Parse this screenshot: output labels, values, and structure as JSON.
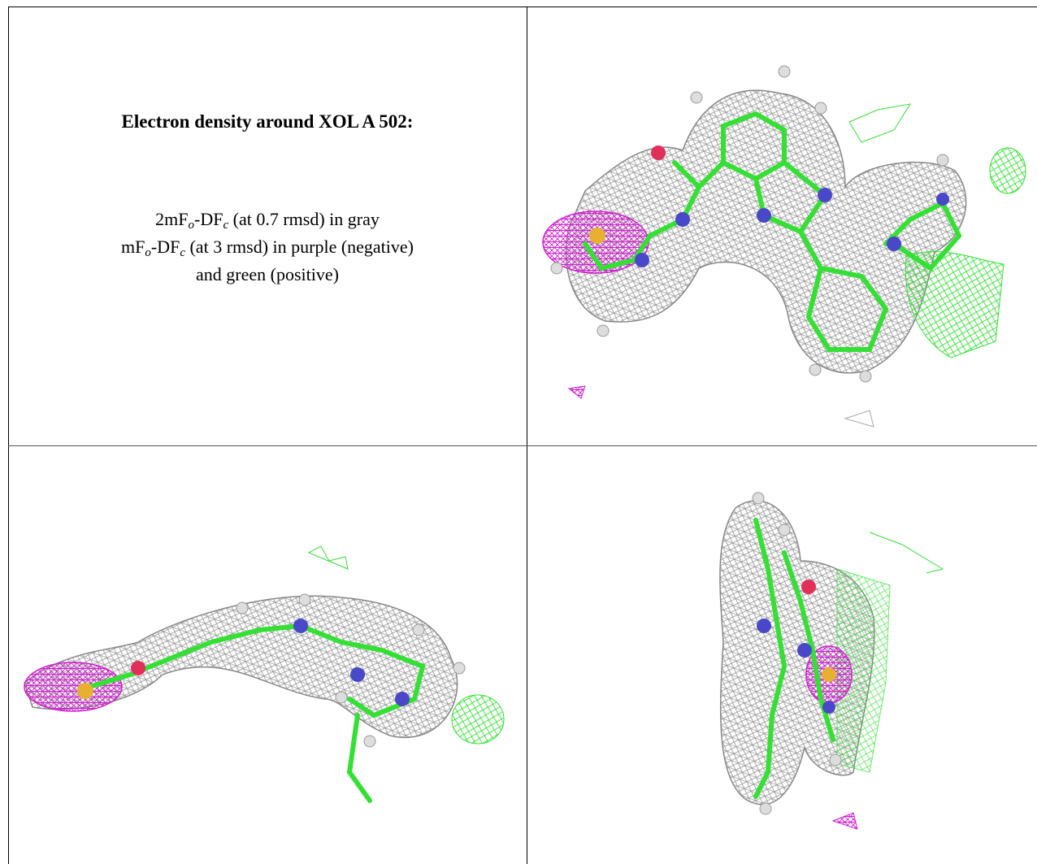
{
  "panel": {
    "title": "Electron density around XOL A 502:",
    "lines": [
      [
        "2mF",
        "o",
        "-DF",
        "c",
        " (at 0.7 rmsd) in gray"
      ],
      [
        "mF",
        "o",
        "-DF",
        "c",
        " (at 3 rmsd) in purple (negative)"
      ],
      [
        "and green (positive)"
      ]
    ]
  }
}
